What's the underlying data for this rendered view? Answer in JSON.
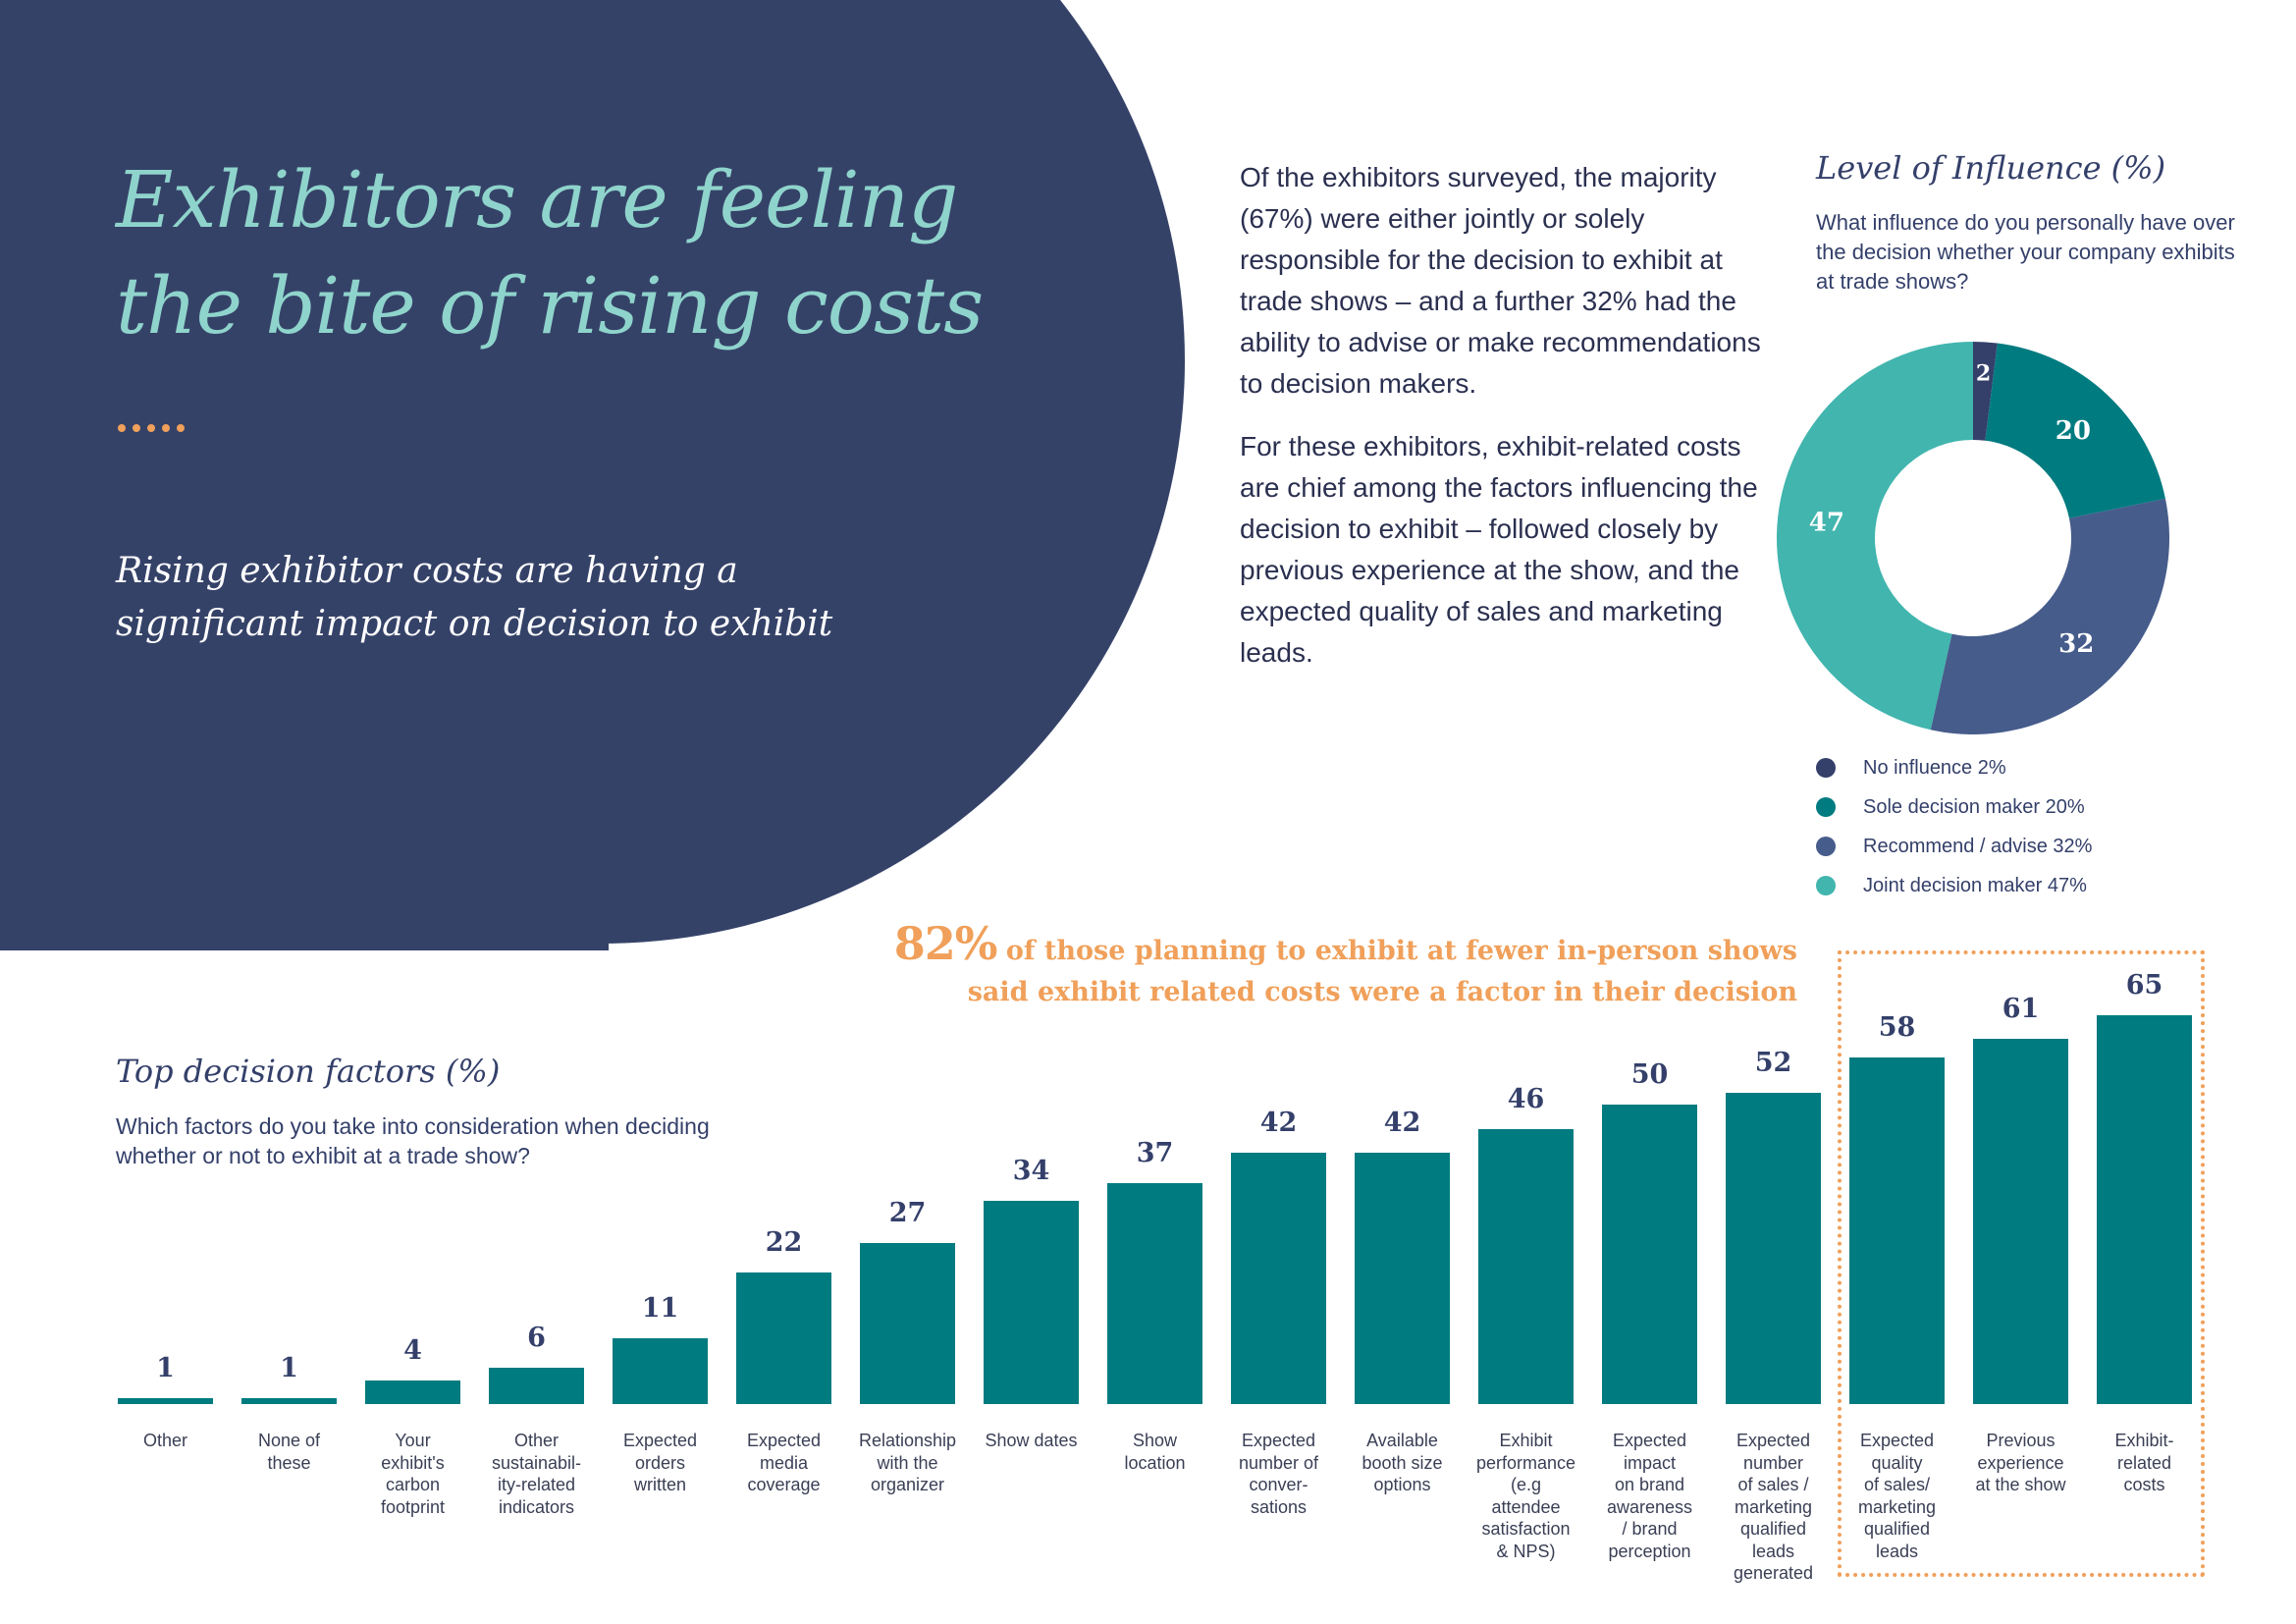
{
  "hero": {
    "title": "Exhibitors are feeling\nthe bite of rising costs",
    "subtitle": "Rising exhibitor costs are having a\nsignificant impact on decision to exhibit"
  },
  "body": {
    "paragraph_1": "Of the exhibitors surveyed, the majority (67%) were either jointly or solely responsible for the decision to exhibit at trade shows – and a further 32% had the ability to advise or make recommendations to decision makers.",
    "paragraph_2": "For these exhibitors, exhibit-related costs are chief among the factors influencing the decision to exhibit – followed closely by previous experience at the show, and the expected quality of sales and marketing leads."
  },
  "headline": {
    "stat": "82%",
    "line_1": " of those planning to exhibit at fewer in-person shows",
    "line_2": "said exhibit related costs were a factor in their decision"
  },
  "colors": {
    "navy": "#354268",
    "teal": "#007b80",
    "light_teal": "#41b5ae",
    "slate": "#465c8b",
    "orange": "#f0a05a",
    "title_teal": "#8fd4cc"
  },
  "chart_data": [
    {
      "type": "pie",
      "donut": true,
      "title": "Level of Influence (%)",
      "subtitle": "What influence do you personally have over the decision whether your company exhibits at trade shows?",
      "legend_position": "bottom",
      "slices": [
        {
          "label": "No influence 2%",
          "value": 2,
          "color": "#34406a"
        },
        {
          "label": "Sole decision maker 20%",
          "value": 20,
          "color": "#007b80"
        },
        {
          "label": "Recommend / advise 32%",
          "value": 32,
          "color": "#465c8b"
        },
        {
          "label": "Joint decision maker 47%",
          "value": 47,
          "color": "#41b5ae"
        }
      ]
    },
    {
      "type": "bar",
      "title": "Top decision factors (%)",
      "subtitle": "Which factors do you take into consideration when deciding whether or not to exhibit at a trade show?",
      "ylim": [
        0,
        65
      ],
      "grid": false,
      "bar_color": "#007b80",
      "highlight_box_categories": [
        14,
        15,
        16
      ],
      "categories": [
        "Other",
        "None of\nthese",
        "Your\nexhibit's\ncarbon\nfootprint",
        "Other\nsustainabil-\nity-related\nindicators",
        "Expected\norders\nwritten",
        "Expected\nmedia\ncoverage",
        "Relationship\nwith the\norganizer",
        "Show dates",
        "Show\nlocation",
        "Expected\nnumber of\nconver-\nsations",
        "Available\nbooth size\noptions",
        "Exhibit\nperformance\n(e.g\nattendee\nsatisfaction\n& NPS)",
        "Expected\nimpact\non brand\nawareness\n/ brand\nperception",
        "Expected\nnumber\nof sales /\nmarketing\nqualified\nleads\ngenerated",
        "Expected\nquality\nof sales/\nmarketing\nqualified\nleads",
        "Previous\nexperience\nat the show",
        "Exhibit-\nrelated\ncosts"
      ],
      "values": [
        1,
        1,
        4,
        6,
        11,
        22,
        27,
        34,
        37,
        42,
        42,
        46,
        50,
        52,
        58,
        61,
        65
      ]
    }
  ]
}
